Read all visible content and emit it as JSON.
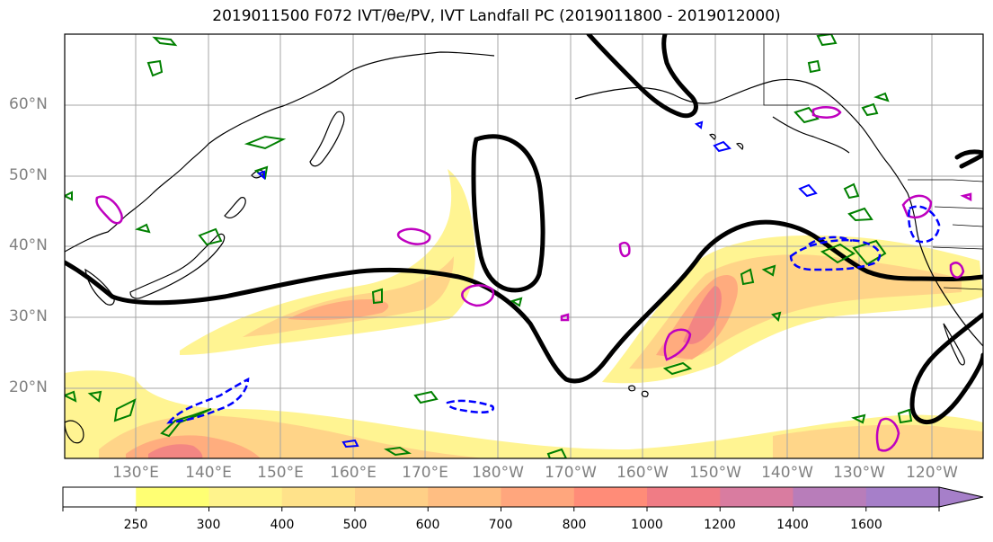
{
  "title": "2019011500 F072 IVT/θe/PV, IVT Landfall PC (2019011800 - 2019012000)",
  "map": {
    "lat_labels": [
      "60°N",
      "50°N",
      "40°N",
      "30°N",
      "20°N"
    ],
    "lon_labels": [
      "130°E",
      "140°E",
      "150°E",
      "160°E",
      "170°E",
      "180°W",
      "170°W",
      "160°W",
      "150°W",
      "140°W",
      "130°W",
      "120°W"
    ]
  },
  "colorbar": {
    "levels": [
      "250",
      "300",
      "400",
      "500",
      "600",
      "700",
      "800",
      "1000",
      "1200",
      "1400",
      "1600"
    ],
    "colors": [
      "#ffffff",
      "#ffff73",
      "#fff38c",
      "#ffe28a",
      "#ffd087",
      "#ffbe82",
      "#ffa67d",
      "#ff8c78",
      "#f07c85",
      "#d97ca0",
      "#b87dba",
      "#a67fc9"
    ]
  },
  "colors": {
    "contour": "#000000",
    "thetae": "#008000",
    "pv_pos": "#bf00bf",
    "pv_neg": "#0000ff"
  }
}
